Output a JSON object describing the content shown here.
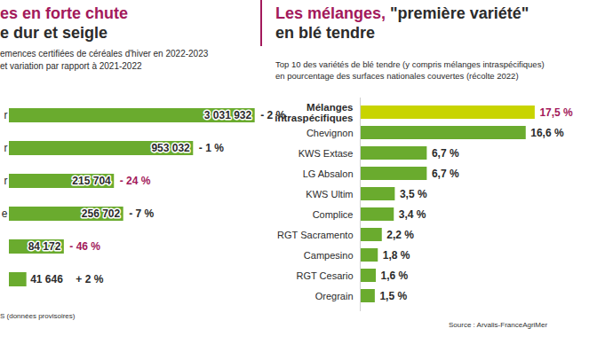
{
  "chart_data": [
    {
      "type": "bar",
      "orientation": "horizontal",
      "title": "es en forte chute\ne dur et seigle",
      "description": "emences certifiées de céréales d'hiver en 2022-2023\net variation par rapport à 2021-2022",
      "categories": [
        "r",
        "r",
        "r",
        "e",
        null,
        null
      ],
      "values": [
        3031932,
        953032,
        215704,
        256702,
        84172,
        41646
      ],
      "value_labels": [
        "3 031 932",
        "953 032",
        "215 704",
        "256 702",
        "84 172",
        "41 646"
      ],
      "variations": [
        -2,
        -1,
        -24,
        -7,
        -46,
        2
      ],
      "variation_labels": [
        "- 2 %",
        "- 1 %",
        "- 24 %",
        "- 7 %",
        "- 46 %",
        "+ 2 %"
      ],
      "variation_colors": [
        "#2b2b2b",
        "#2b2b2b",
        "#a3195b",
        "#2b2b2b",
        "#a3195b",
        "#2b2b2b"
      ],
      "color": "#6aab2e",
      "log": "x",
      "xlim": [
        30000,
        3100000
      ],
      "xticks": [],
      "tick_labels": "y",
      "data_labels": true,
      "source": "S (données provisoires)"
    },
    {
      "type": "bar",
      "orientation": "horizontal",
      "title": "Les mélanges, \"première variété\"\nen blé tendre",
      "subtitle": "Top 10 des variétés de blé tendre (y compris mélanges intraspécifiques)\nen pourcentage des surfaces nationales couvertes (récolte 2022)",
      "categories": [
        "Mélanges intraspécifiques",
        "Chevignon",
        "KWS Extase",
        "LG Absalon",
        "KWS Ultim",
        "Complice",
        "RGT Sacramento",
        "Campesino",
        "RGT Cesario",
        "Oregrain"
      ],
      "values": [
        17.5,
        16.6,
        6.7,
        6.7,
        3.5,
        3.4,
        2.2,
        1.8,
        1.6,
        1.5
      ],
      "value_labels": [
        "17,5 %",
        "16,6 %",
        "6,7 %",
        "6,7 %",
        "3,5 %",
        "3,4 %",
        "2,2 %",
        "1,8 %",
        "1,6 %",
        "1,5 %"
      ],
      "colors": [
        "#c8d400",
        "#6aab2e",
        "#6aab2e",
        "#6aab2e",
        "#6aab2e",
        "#6aab2e",
        "#6aab2e",
        "#6aab2e",
        "#6aab2e",
        "#6aab2e"
      ],
      "xlim": [
        0,
        20
      ],
      "xticks": [],
      "tick_labels": "y",
      "data_labels": true,
      "source": "Source : Arvalis-FranceAgriMer"
    }
  ]
}
